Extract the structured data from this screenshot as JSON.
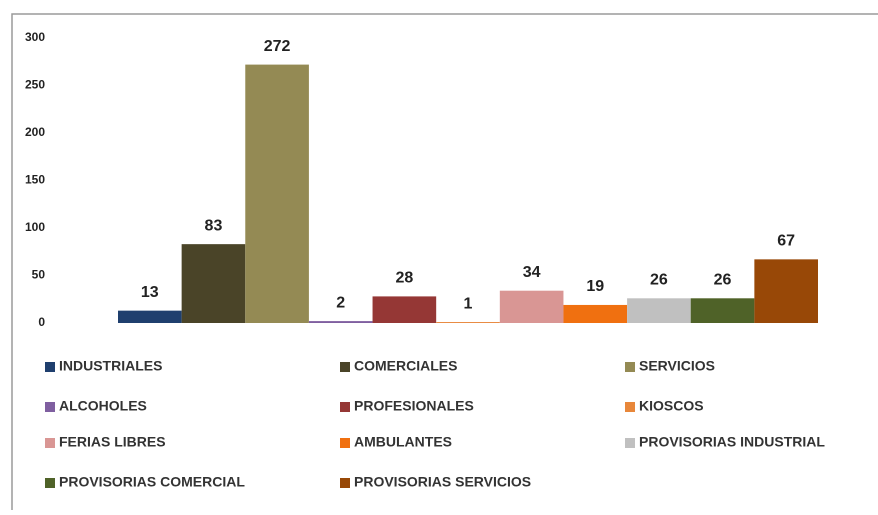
{
  "chart_data": {
    "type": "bar",
    "categories": [
      null
    ],
    "series": [
      {
        "name": "INDUSTRIALES",
        "color": "#1f3f6e",
        "values": [
          13
        ]
      },
      {
        "name": "COMERCIALES",
        "color": "#4a4428",
        "values": [
          83
        ]
      },
      {
        "name": "SERVICIOS",
        "color": "#948a54",
        "values": [
          272
        ]
      },
      {
        "name": "ALCOHOLES",
        "color": "#7f5fa0",
        "values": [
          2
        ]
      },
      {
        "name": "PROFESIONALES",
        "color": "#953735",
        "values": [
          28
        ]
      },
      {
        "name": "KIOSCOS",
        "color": "#e8873a",
        "values": [
          1
        ]
      },
      {
        "name": "FERIAS LIBRES",
        "color": "#d99694",
        "values": [
          34
        ]
      },
      {
        "name": "AMBULANTES",
        "color": "#f07010",
        "values": [
          19
        ]
      },
      {
        "name": "PROVISORIAS INDUSTRIAL",
        "color": "#c0c0c0",
        "values": [
          26
        ]
      },
      {
        "name": "PROVISORIAS COMERCIAL",
        "color": "#4f6228",
        "values": [
          26
        ]
      },
      {
        "name": "PROVISORIAS SERVICIOS",
        "color": "#984807",
        "values": [
          67
        ]
      }
    ],
    "ylim": [
      0,
      300
    ],
    "yticks": [
      0,
      50,
      100,
      150,
      200,
      250,
      300
    ],
    "grid": false,
    "legend": "bottom"
  }
}
